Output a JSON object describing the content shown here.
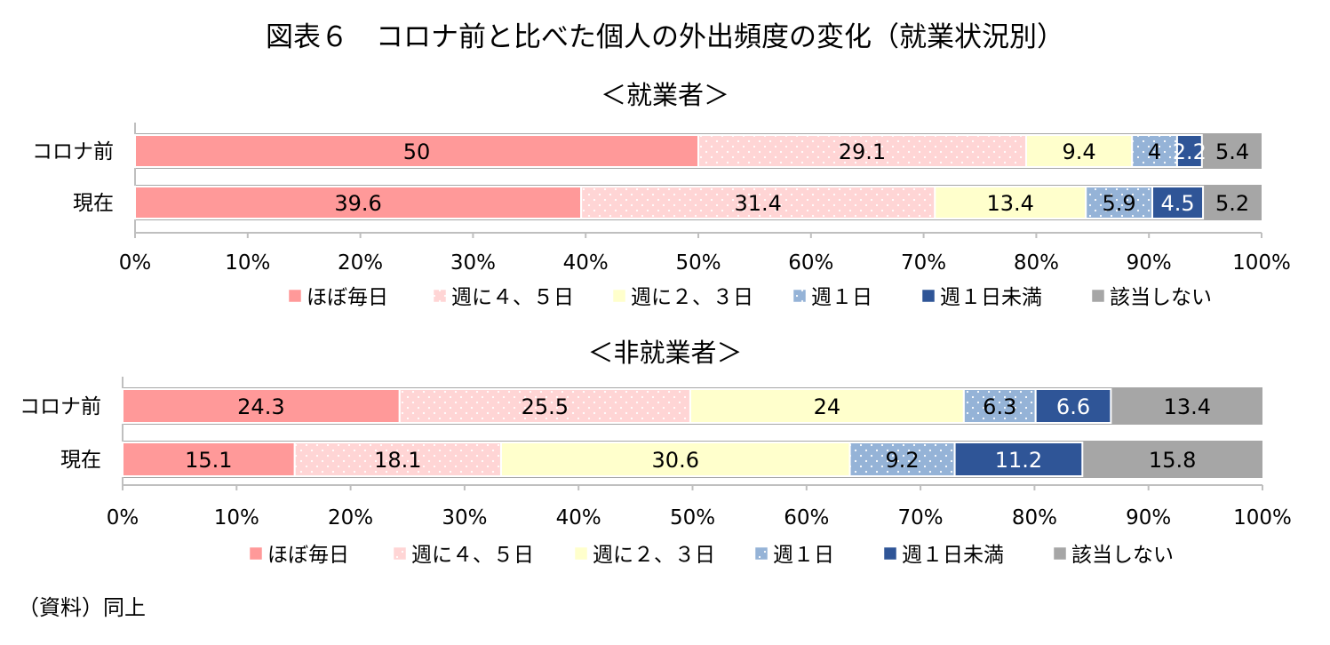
{
  "title": "図表６　コロナ前と比べた個人の外出頻度の変化（就業状況別）",
  "source": "（資料）同上",
  "chart_data": [
    {
      "type": "bar",
      "orientation": "horizontal",
      "stacked": "100%",
      "title": "＜就業者＞",
      "categories": [
        "コロナ前",
        "現在"
      ],
      "series": [
        {
          "name": "ほぼ毎日",
          "values": [
            50,
            39.6
          ],
          "color": "#ff9999",
          "pattern": "none",
          "label_color": "#000000"
        },
        {
          "name": "週に４、５日",
          "values": [
            29.1,
            31.4
          ],
          "color": "#ffd5d5",
          "pattern": "dots-white",
          "label_color": "#000000"
        },
        {
          "name": "週に２、３日",
          "values": [
            9.4,
            13.4
          ],
          "color": "#ffffcc",
          "pattern": "none",
          "label_color": "#000000"
        },
        {
          "name": "週１日",
          "values": [
            4,
            5.9
          ],
          "color": "#95b3d7",
          "pattern": "dots-white",
          "label_color": "#000000"
        },
        {
          "name": "週１日未満",
          "values": [
            2.2,
            4.5
          ],
          "color": "#2f5597",
          "pattern": "none",
          "label_color": "#ffffff"
        },
        {
          "name": "該当しない",
          "values": [
            5.4,
            5.2
          ],
          "color": "#a6a6a6",
          "pattern": "none",
          "label_color": "#000000"
        }
      ],
      "xlim": [
        0,
        100
      ],
      "x_ticks": [
        "0%",
        "10%",
        "20%",
        "30%",
        "40%",
        "50%",
        "60%",
        "70%",
        "80%",
        "90%",
        "100%"
      ],
      "legend_position": "bottom",
      "grid": false
    },
    {
      "type": "bar",
      "orientation": "horizontal",
      "stacked": "100%",
      "title": "＜非就業者＞",
      "categories": [
        "コロナ前",
        "現在"
      ],
      "series": [
        {
          "name": "ほぼ毎日",
          "values": [
            24.3,
            15.1
          ],
          "color": "#ff9999",
          "pattern": "none",
          "label_color": "#000000"
        },
        {
          "name": "週に４、５日",
          "values": [
            25.5,
            18.1
          ],
          "color": "#ffd5d5",
          "pattern": "dots-white",
          "label_color": "#000000"
        },
        {
          "name": "週に２、３日",
          "values": [
            24,
            30.6
          ],
          "color": "#ffffcc",
          "pattern": "none",
          "label_color": "#000000"
        },
        {
          "name": "週１日",
          "values": [
            6.3,
            9.2
          ],
          "color": "#95b3d7",
          "pattern": "dots-white",
          "label_color": "#000000"
        },
        {
          "name": "週１日未満",
          "values": [
            6.6,
            11.2
          ],
          "color": "#2f5597",
          "pattern": "none",
          "label_color": "#ffffff"
        },
        {
          "name": "該当しない",
          "values": [
            13.4,
            15.8
          ],
          "color": "#a6a6a6",
          "pattern": "none",
          "label_color": "#000000"
        }
      ],
      "xlim": [
        0,
        100
      ],
      "x_ticks": [
        "0%",
        "10%",
        "20%",
        "30%",
        "40%",
        "50%",
        "60%",
        "70%",
        "80%",
        "90%",
        "100%"
      ],
      "legend_position": "bottom",
      "grid": false
    }
  ]
}
